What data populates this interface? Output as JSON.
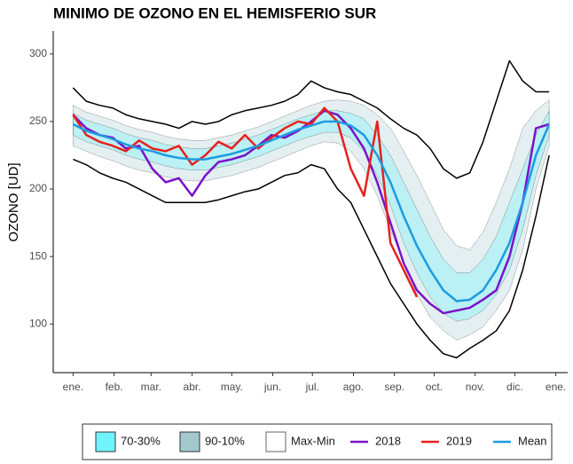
{
  "chart_data": {
    "type": "line",
    "title": "MINIMO DE OZONO EN EL HEMISFERIO SUR",
    "y_label": "OZONO [UD]",
    "x": [
      0,
      10,
      20,
      30,
      40,
      50,
      60,
      70,
      80,
      90,
      100,
      110,
      120,
      130,
      140,
      150,
      160,
      170,
      180,
      190,
      200,
      210,
      220,
      230,
      240,
      250,
      260,
      270,
      280,
      290,
      300,
      310,
      320,
      330,
      340,
      350,
      360
    ],
    "xlim": [
      -15,
      374
    ],
    "xticks": [
      {
        "value": 0,
        "label": "ene."
      },
      {
        "value": 31,
        "label": "feb."
      },
      {
        "value": 59,
        "label": "mar."
      },
      {
        "value": 90,
        "label": "abr."
      },
      {
        "value": 120,
        "label": "may."
      },
      {
        "value": 151,
        "label": "jun."
      },
      {
        "value": 181,
        "label": "jul."
      },
      {
        "value": 212,
        "label": "ago."
      },
      {
        "value": 243,
        "label": "sep."
      },
      {
        "value": 273,
        "label": "oct."
      },
      {
        "value": 304,
        "label": "nov."
      },
      {
        "value": 334,
        "label": "dic."
      },
      {
        "value": 365,
        "label": "ene."
      }
    ],
    "ylim": [
      64,
      317
    ],
    "yticks": [
      100,
      150,
      200,
      250,
      300
    ],
    "grid": false,
    "legend": "bottom",
    "series": [
      {
        "name": "70-30%",
        "kind": "band",
        "color": "#6ff4fb",
        "upper": [
          256,
          251,
          248,
          245,
          241,
          238,
          236,
          233,
          231,
          230,
          230,
          232,
          234,
          237,
          240,
          244,
          248,
          252,
          255,
          258,
          258,
          256,
          252,
          240,
          225,
          205,
          185,
          165,
          148,
          138,
          138,
          148,
          165,
          190,
          215,
          240,
          258
        ],
        "lower": [
          240,
          235,
          232,
          229,
          225,
          222,
          220,
          217,
          215,
          214,
          214,
          216,
          218,
          221,
          224,
          228,
          232,
          236,
          239,
          242,
          242,
          238,
          228,
          210,
          188,
          160,
          138,
          120,
          108,
          102,
          104,
          110,
          122,
          140,
          170,
          210,
          240
        ]
      },
      {
        "name": "90-10%",
        "kind": "band",
        "color": "#a3c9cc",
        "upper": [
          262,
          257,
          254,
          251,
          247,
          244,
          242,
          239,
          237,
          236,
          236,
          238,
          240,
          243,
          246,
          250,
          254,
          258,
          262,
          265,
          266,
          265,
          262,
          255,
          245,
          228,
          210,
          190,
          170,
          158,
          155,
          168,
          190,
          215,
          245,
          258,
          266
        ],
        "lower": [
          232,
          228,
          224,
          221,
          217,
          214,
          212,
          209,
          207,
          206,
          206,
          208,
          210,
          213,
          216,
          220,
          224,
          228,
          232,
          235,
          234,
          228,
          215,
          195,
          170,
          145,
          122,
          105,
          95,
          88,
          92,
          98,
          110,
          125,
          155,
          200,
          232
        ]
      },
      {
        "name": "Max-Min",
        "kind": "range-lines",
        "color": "#000000",
        "upper": [
          275,
          265,
          262,
          260,
          255,
          252,
          250,
          248,
          245,
          250,
          248,
          250,
          255,
          258,
          260,
          262,
          265,
          270,
          280,
          275,
          272,
          270,
          265,
          260,
          252,
          245,
          240,
          230,
          215,
          208,
          212,
          235,
          265,
          295,
          280,
          272,
          272
        ],
        "lower": [
          222,
          218,
          212,
          208,
          205,
          200,
          195,
          190,
          190,
          190,
          190,
          192,
          195,
          198,
          200,
          205,
          210,
          212,
          218,
          215,
          200,
          190,
          170,
          150,
          130,
          115,
          100,
          88,
          78,
          75,
          82,
          88,
          95,
          110,
          140,
          180,
          225
        ]
      },
      {
        "name": "2018",
        "kind": "line",
        "color": "#7b12c9",
        "values": [
          255,
          245,
          240,
          238,
          230,
          232,
          215,
          205,
          208,
          195,
          210,
          220,
          222,
          225,
          232,
          240,
          238,
          243,
          250,
          258,
          255,
          245,
          230,
          205,
          175,
          145,
          125,
          115,
          108,
          110,
          112,
          118,
          125,
          150,
          190,
          245,
          248
        ]
      },
      {
        "name": "2019",
        "kind": "line",
        "color": "#e8211c",
        "values": [
          255,
          240,
          235,
          232,
          228,
          236,
          230,
          228,
          232,
          218,
          225,
          235,
          230,
          240,
          230,
          238,
          245,
          250,
          248,
          260,
          250,
          215,
          195,
          250,
          160,
          140,
          120,
          null,
          null,
          null,
          null,
          null,
          null,
          null,
          null,
          null,
          null
        ]
      },
      {
        "name": "Mean",
        "kind": "line",
        "color": "#1e9be0",
        "values": [
          248,
          243,
          240,
          237,
          233,
          230,
          228,
          225,
          223,
          222,
          222,
          224,
          226,
          229,
          232,
          236,
          240,
          244,
          247,
          250,
          250,
          247,
          240,
          225,
          205,
          180,
          158,
          140,
          125,
          117,
          118,
          125,
          140,
          160,
          190,
          225,
          248
        ]
      }
    ]
  }
}
